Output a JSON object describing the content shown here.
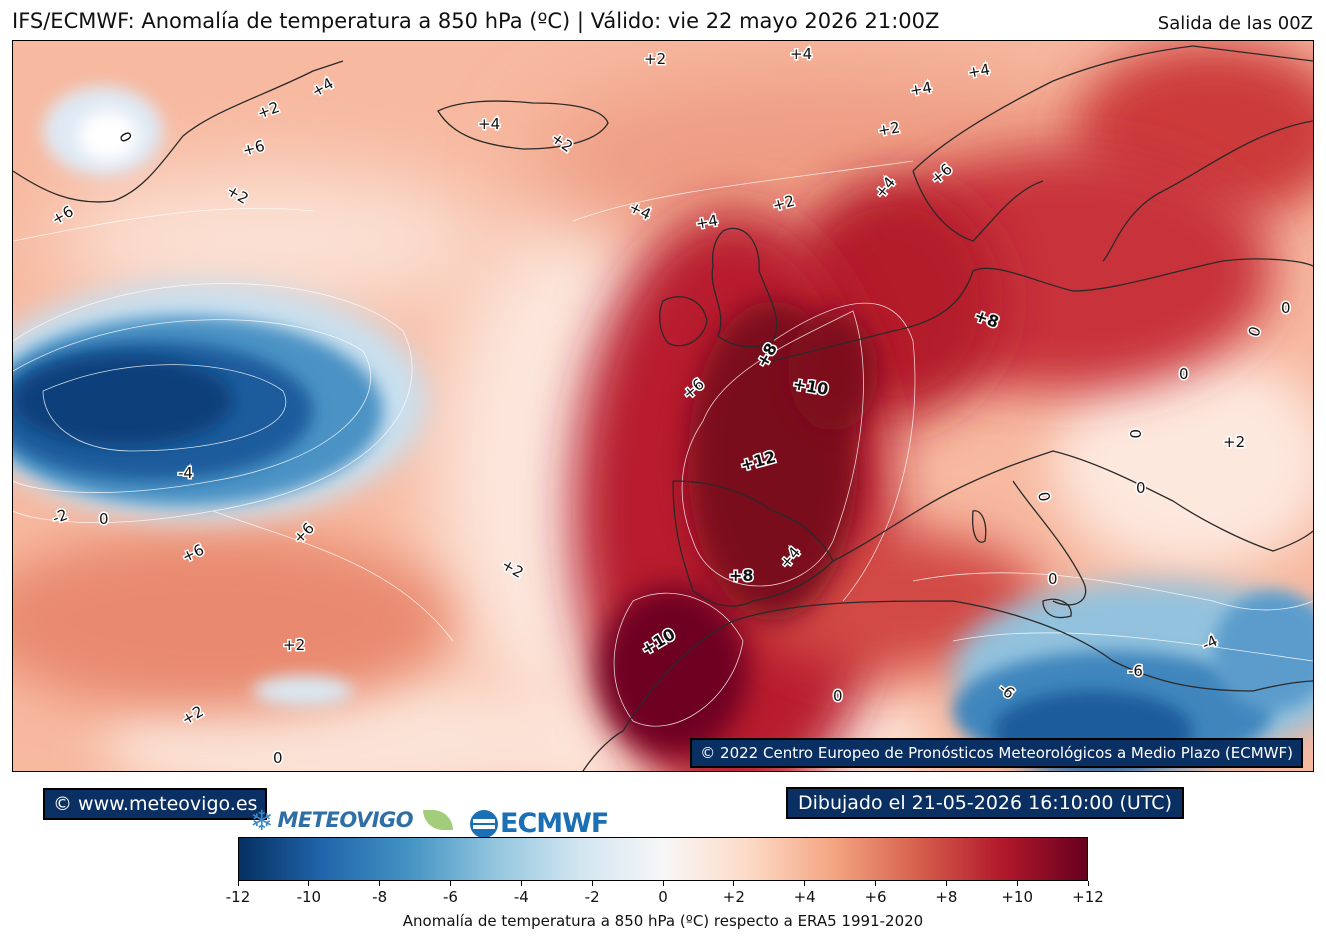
{
  "header": {
    "title": "IFS/ECMWF: Anomalía de temperatura a 850 hPa (ºC) | Válido: vie 22 mayo 2026 21:00Z",
    "run": "Salida de las 00Z"
  },
  "map": {
    "copyright": "© 2022 Centro Europeo de Pronósticos Meteorológicos a Medio Plazo (ECMWF)",
    "contour_labels": [
      "+2",
      "+4",
      "+2",
      "+4",
      "+2",
      "+6",
      "+2",
      "+4",
      "+4",
      "+4",
      "+4",
      "+2",
      "+4",
      "+2",
      "0",
      "+6",
      "+6",
      "+8",
      "0",
      "0",
      "0",
      "0",
      "+8",
      "+10",
      "+6",
      "+4",
      "+12",
      "-4",
      "+2",
      "0",
      "0",
      "-2",
      "0",
      "+6",
      "+6",
      "+2",
      "+8",
      "+4",
      "+2",
      "0",
      "-4",
      "+10",
      "-6",
      "-6",
      "0",
      "+2",
      "0",
      "-2"
    ]
  },
  "footer": {
    "website": "© www.meteovigo.es",
    "drawn": "Dibujado el 21-05-2026 16:10:00 (UTC)",
    "logo_meteovigo": "METEOVIGO",
    "logo_ecmwf": "ECMWF"
  },
  "colorbar": {
    "ticks": [
      "-12",
      "-10",
      "-8",
      "-6",
      "-4",
      "-2",
      "0",
      "+2",
      "+4",
      "+6",
      "+8",
      "+10",
      "+12"
    ],
    "title": "Anomalía de temperatura a 850 hPa (ºC) respecto a ERA5 1991-2020",
    "colors": [
      "#053061",
      "#2166ac",
      "#4393c3",
      "#92c5de",
      "#d1e5f0",
      "#f7f7f7",
      "#fddbc7",
      "#f4a582",
      "#d6604d",
      "#b2182b",
      "#67001f"
    ]
  }
}
